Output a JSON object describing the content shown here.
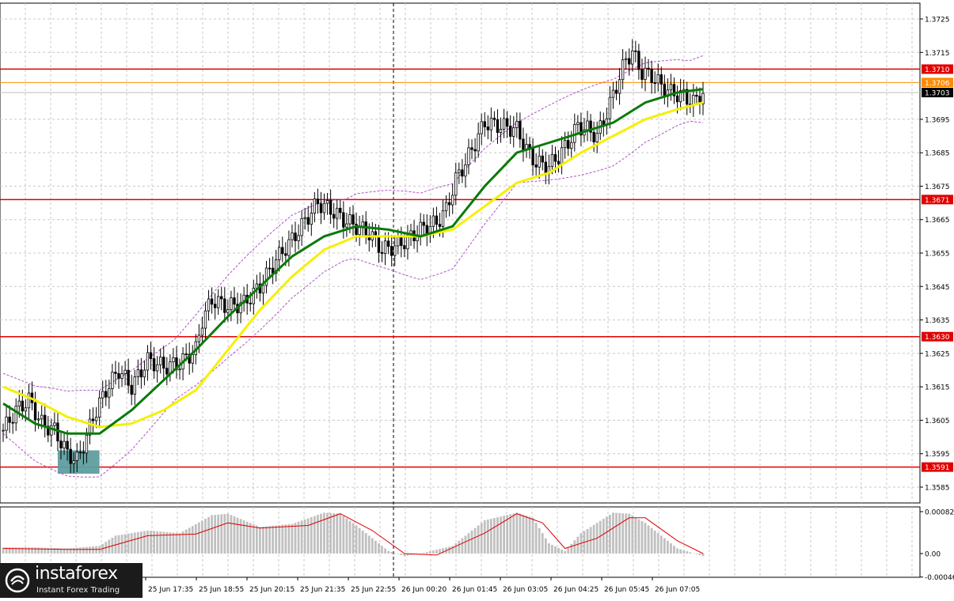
{
  "chart_data": {
    "type": "candlestick",
    "symbol_hint": "",
    "price_axis": {
      "min": 1.358,
      "max": 1.373,
      "ticks": [
        "1.3725",
        "1.3715",
        "1.3695",
        "1.3685",
        "1.3675",
        "1.3665",
        "1.3655",
        "1.3645",
        "1.3635",
        "1.3625",
        "1.3615",
        "1.3605",
        "1.3595",
        "1.3585"
      ]
    },
    "time_axis": {
      "labels": [
        "25 Jun 17:35",
        "25 Jun 18:55",
        "25 Jun 20:15",
        "25 Jun 21:35",
        "25 Jun 22:55",
        "26 Jun 00:20",
        "26 Jun 01:45",
        "26 Jun 03:05",
        "26 Jun 04:25",
        "26 Jun 05:45",
        "26 Jun 07:05"
      ]
    },
    "levels": [
      {
        "value": 1.371,
        "label": "1.3710",
        "color": "#e00000"
      },
      {
        "value": 1.3671,
        "label": "1.3671",
        "color": "#e00000"
      },
      {
        "value": 1.363,
        "label": "1.3630",
        "color": "#e00000"
      },
      {
        "value": 1.3591,
        "label": "1.3591",
        "color": "#e00000"
      }
    ],
    "orange_level": {
      "value": 1.3706,
      "label": "1.3706",
      "color": "#ff8c00"
    },
    "current_price": {
      "value": 1.3703,
      "label": "1.3703"
    },
    "close_path": [
      [
        0,
        1.3602
      ],
      [
        4,
        1.3608
      ],
      [
        8,
        1.3611
      ],
      [
        12,
        1.3604
      ],
      [
        16,
        1.3602
      ],
      [
        20,
        1.3595
      ],
      [
        23,
        1.3593
      ],
      [
        26,
        1.36
      ],
      [
        28,
        1.3606
      ],
      [
        32,
        1.3614
      ],
      [
        36,
        1.362
      ],
      [
        40,
        1.3615
      ],
      [
        45,
        1.3623
      ],
      [
        50,
        1.3621
      ],
      [
        55,
        1.3622
      ],
      [
        60,
        1.3626
      ],
      [
        62,
        1.3635
      ],
      [
        65,
        1.3641
      ],
      [
        70,
        1.3639
      ],
      [
        75,
        1.364
      ],
      [
        80,
        1.3645
      ],
      [
        85,
        1.3653
      ],
      [
        90,
        1.3659
      ],
      [
        95,
        1.3666
      ],
      [
        98,
        1.367
      ],
      [
        102,
        1.3668
      ],
      [
        106,
        1.3665
      ],
      [
        110,
        1.3663
      ],
      [
        114,
        1.3661
      ],
      [
        118,
        1.3656
      ],
      [
        122,
        1.3657
      ],
      [
        126,
        1.3659
      ],
      [
        130,
        1.3662
      ],
      [
        135,
        1.3664
      ],
      [
        138,
        1.3668
      ],
      [
        141,
        1.3677
      ],
      [
        144,
        1.3682
      ],
      [
        147,
        1.3688
      ],
      [
        150,
        1.3694
      ],
      [
        155,
        1.3693
      ],
      [
        160,
        1.3692
      ],
      [
        163,
        1.3686
      ],
      [
        166,
        1.3682
      ],
      [
        170,
        1.3681
      ],
      [
        173,
        1.3684
      ],
      [
        176,
        1.3688
      ],
      [
        179,
        1.3693
      ],
      [
        182,
        1.3692
      ],
      [
        185,
        1.369
      ],
      [
        188,
        1.3697
      ],
      [
        191,
        1.3705
      ],
      [
        194,
        1.3713
      ],
      [
        196,
        1.3715
      ],
      [
        199,
        1.3709
      ],
      [
        202,
        1.3708
      ],
      [
        205,
        1.3705
      ],
      [
        208,
        1.3703
      ],
      [
        212,
        1.3702
      ],
      [
        215,
        1.37
      ],
      [
        218,
        1.3703
      ]
    ],
    "ma_green": [
      [
        0,
        1.361
      ],
      [
        10,
        1.3604
      ],
      [
        20,
        1.3601
      ],
      [
        30,
        1.3601
      ],
      [
        40,
        1.3608
      ],
      [
        50,
        1.3617
      ],
      [
        60,
        1.3626
      ],
      [
        70,
        1.3636
      ],
      [
        80,
        1.3645
      ],
      [
        90,
        1.3654
      ],
      [
        100,
        1.366
      ],
      [
        110,
        1.3663
      ],
      [
        120,
        1.3662
      ],
      [
        130,
        1.366
      ],
      [
        140,
        1.3663
      ],
      [
        150,
        1.3675
      ],
      [
        160,
        1.3685
      ],
      [
        170,
        1.3688
      ],
      [
        180,
        1.3691
      ],
      [
        190,
        1.3694
      ],
      [
        200,
        1.37
      ],
      [
        210,
        1.3703
      ],
      [
        218,
        1.3704
      ]
    ],
    "ma_yellow": [
      [
        0,
        1.3615
      ],
      [
        10,
        1.3611
      ],
      [
        20,
        1.3606
      ],
      [
        30,
        1.3603
      ],
      [
        40,
        1.3604
      ],
      [
        50,
        1.3608
      ],
      [
        60,
        1.3614
      ],
      [
        70,
        1.3626
      ],
      [
        80,
        1.3638
      ],
      [
        90,
        1.3648
      ],
      [
        100,
        1.3656
      ],
      [
        110,
        1.366
      ],
      [
        120,
        1.366
      ],
      [
        130,
        1.366
      ],
      [
        140,
        1.3662
      ],
      [
        150,
        1.3669
      ],
      [
        160,
        1.3676
      ],
      [
        170,
        1.3679
      ],
      [
        180,
        1.3685
      ],
      [
        190,
        1.369
      ],
      [
        200,
        1.3695
      ],
      [
        210,
        1.3698
      ],
      [
        218,
        1.37
      ]
    ],
    "highlight_box": {
      "from": 17,
      "to": 30,
      "low": 1.3589,
      "high": 1.3596,
      "color": "#5f9ea0"
    },
    "oscillator": {
      "ticks": [
        "0.00082",
        "0.00",
        "-0.00046"
      ],
      "min": -0.00046,
      "max": 0.00082,
      "bars": [
        [
          0,
          0.00012
        ],
        [
          10,
          0.00012
        ],
        [
          20,
          0.0001
        ],
        [
          30,
          0.00015
        ],
        [
          35,
          0.00035
        ],
        [
          45,
          0.00045
        ],
        [
          55,
          0.0004
        ],
        [
          65,
          0.00075
        ],
        [
          70,
          0.00078
        ],
        [
          80,
          0.00052
        ],
        [
          90,
          0.00058
        ],
        [
          100,
          0.0008
        ],
        [
          105,
          0.00078
        ],
        [
          110,
          0.00055
        ],
        [
          120,
          5e-05
        ],
        [
          125,
          -5e-05
        ],
        [
          130,
          0.0
        ],
        [
          140,
          0.00015
        ],
        [
          150,
          0.00065
        ],
        [
          160,
          0.0008
        ],
        [
          165,
          0.0007
        ],
        [
          170,
          0.0002
        ],
        [
          175,
          5e-05
        ],
        [
          180,
          0.0004
        ],
        [
          190,
          0.0008
        ],
        [
          195,
          0.00078
        ],
        [
          200,
          0.0006
        ],
        [
          210,
          0.0001
        ],
        [
          218,
          -5e-05
        ]
      ],
      "signal": [
        [
          0,
          0.0001
        ],
        [
          20,
          8e-05
        ],
        [
          30,
          8e-05
        ],
        [
          45,
          0.00035
        ],
        [
          60,
          0.00038
        ],
        [
          70,
          0.0006
        ],
        [
          80,
          0.0005
        ],
        [
          95,
          0.00055
        ],
        [
          105,
          0.00078
        ],
        [
          115,
          0.00045
        ],
        [
          125,
          0.0
        ],
        [
          135,
          -3e-05
        ],
        [
          150,
          0.0004
        ],
        [
          160,
          0.00078
        ],
        [
          168,
          0.0006
        ],
        [
          175,
          0.0001
        ],
        [
          185,
          0.0003
        ],
        [
          195,
          0.0007
        ],
        [
          200,
          0.0007
        ],
        [
          210,
          0.00025
        ],
        [
          218,
          0.0
        ]
      ]
    }
  },
  "branding": {
    "name": "instaforex",
    "tagline": "Instant Forex Trading"
  }
}
